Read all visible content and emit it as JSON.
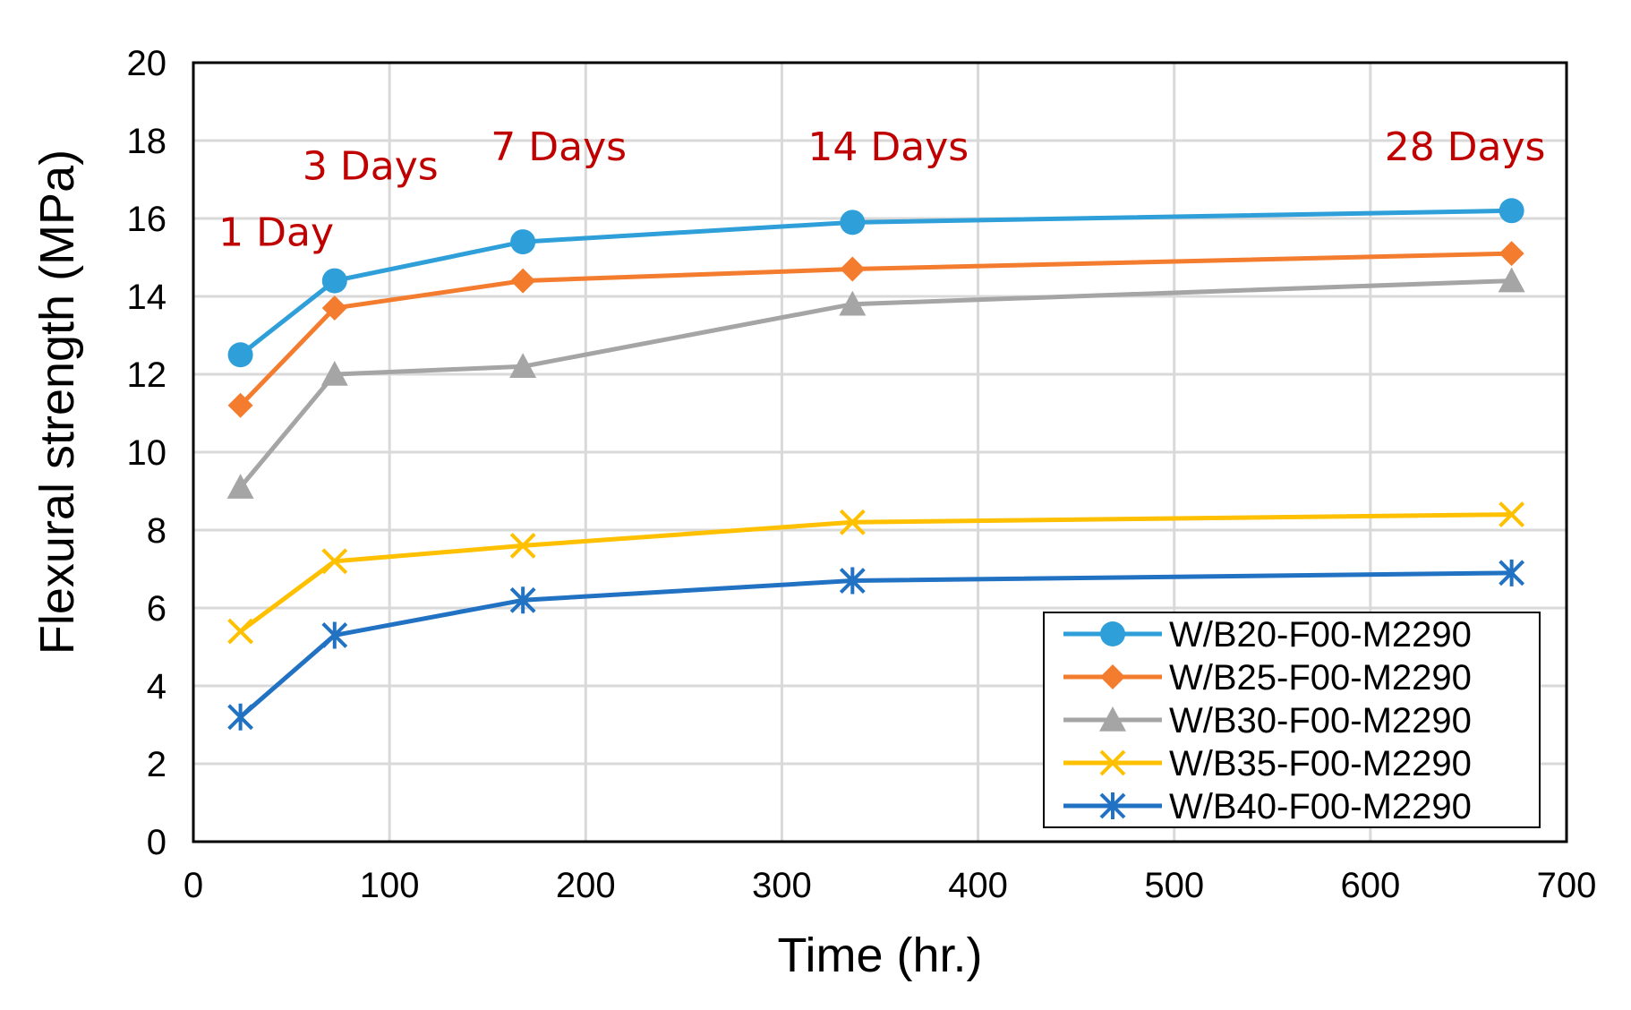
{
  "chart_data": {
    "type": "line",
    "title": "",
    "xlabel": "Time (hr.)",
    "ylabel": "Flexural strength (MPa)",
    "xlim": [
      0,
      700
    ],
    "ylim": [
      0,
      20
    ],
    "xticks": [
      0,
      100,
      200,
      300,
      400,
      500,
      600,
      700
    ],
    "yticks": [
      0,
      2,
      4,
      6,
      8,
      10,
      12,
      14,
      16,
      18,
      20
    ],
    "grid": true,
    "legend_position": "bottom-right",
    "x": [
      24,
      72,
      168,
      336,
      672
    ],
    "series": [
      {
        "name": "W/B20-F00-M2290",
        "color": "#2E9FD8",
        "marker": "circle",
        "values": [
          12.5,
          14.4,
          15.4,
          15.9,
          16.2
        ]
      },
      {
        "name": "W/B25-F00-M2290",
        "color": "#F47C2F",
        "marker": "diamond",
        "values": [
          11.2,
          13.7,
          14.4,
          14.7,
          15.1
        ]
      },
      {
        "name": "W/B30-F00-M2290",
        "color": "#A5A5A5",
        "marker": "triangle",
        "values": [
          9.1,
          12.0,
          12.2,
          13.8,
          14.4
        ]
      },
      {
        "name": "W/B35-F00-M2290",
        "color": "#FFC000",
        "marker": "x",
        "values": [
          5.4,
          7.2,
          7.6,
          8.2,
          8.4
        ]
      },
      {
        "name": "W/B40-F00-M2290",
        "color": "#2272C3",
        "marker": "asterisk",
        "values": [
          3.2,
          5.3,
          6.2,
          6.7,
          6.9
        ]
      }
    ],
    "annotations": [
      {
        "text": "1 Day",
        "x": 24,
        "y": 15.3,
        "color": "#C00000"
      },
      {
        "text": "3 Days",
        "x": 72,
        "y": 17.0,
        "color": "#C00000"
      },
      {
        "text": "7 Days",
        "x": 168,
        "y": 17.5,
        "color": "#C00000"
      },
      {
        "text": "14 Days",
        "x": 336,
        "y": 17.5,
        "color": "#C00000"
      },
      {
        "text": "28 Days",
        "x": 630,
        "y": 17.5,
        "color": "#C00000"
      }
    ]
  }
}
